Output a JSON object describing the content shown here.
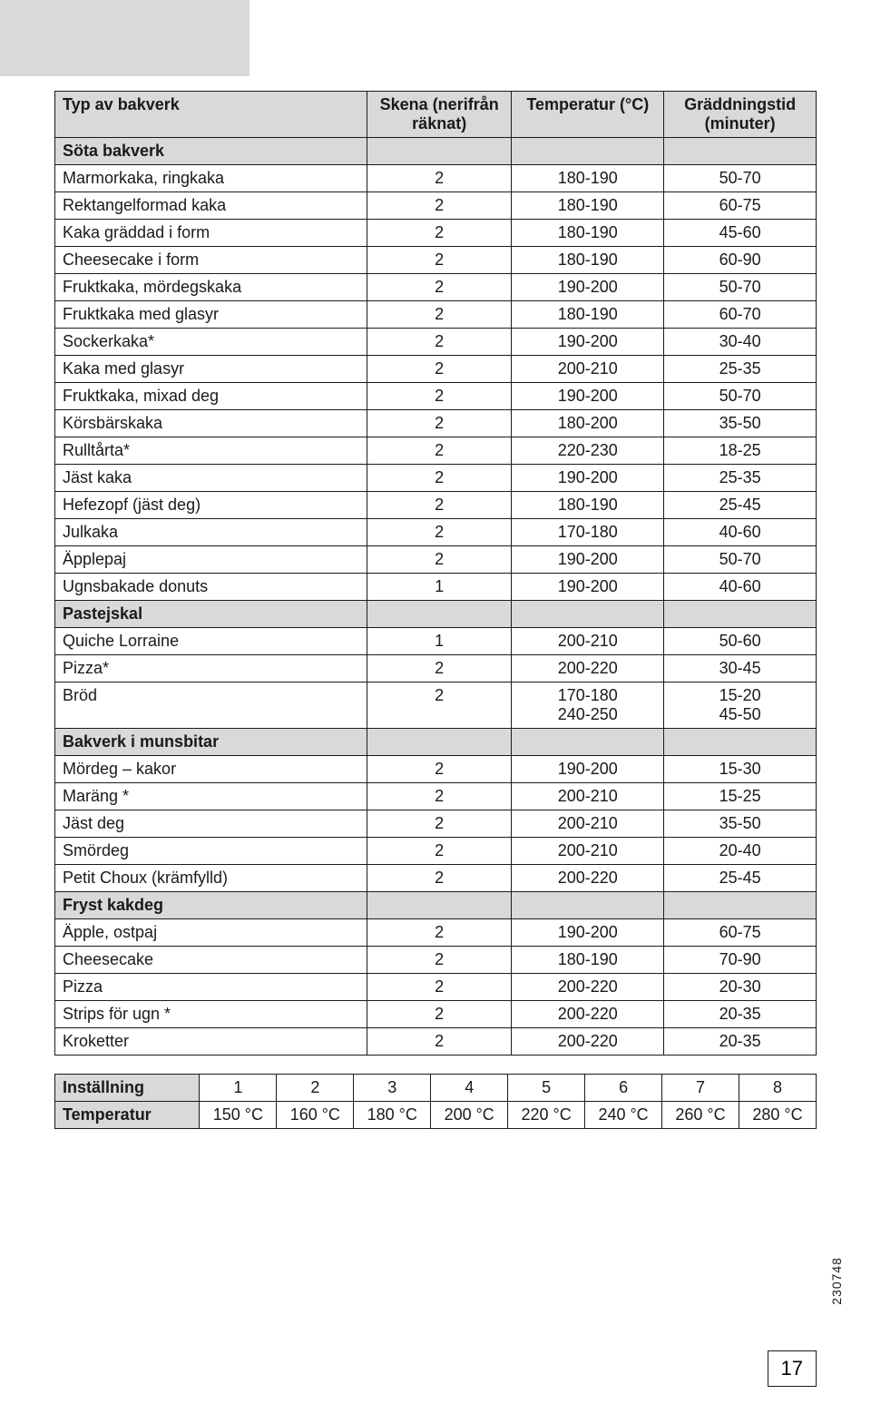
{
  "headers": {
    "col1": "Typ av bakverk",
    "col2_line1": "Skena (nerifrån",
    "col2_line2": "räknat)",
    "col3": "Temperatur (°C)",
    "col4_line1": "Gräddningstid",
    "col4_line2": "(minuter)"
  },
  "sections": [
    {
      "title": "Söta bakverk",
      "rows": [
        {
          "name": "Marmorkaka, ringkaka",
          "skena": "2",
          "temp": "180-190",
          "time": "50-70"
        },
        {
          "name": "Rektangelformad kaka",
          "skena": "2",
          "temp": "180-190",
          "time": "60-75"
        },
        {
          "name": "Kaka gräddad i form",
          "skena": "2",
          "temp": "180-190",
          "time": "45-60"
        },
        {
          "name": "Cheesecake i form",
          "skena": "2",
          "temp": "180-190",
          "time": "60-90"
        },
        {
          "name": "Fruktkaka, mördegskaka",
          "skena": "2",
          "temp": "190-200",
          "time": "50-70"
        },
        {
          "name": "Fruktkaka med glasyr",
          "skena": "2",
          "temp": "180-190",
          "time": "60-70"
        },
        {
          "name": "Sockerkaka*",
          "skena": "2",
          "temp": "190-200",
          "time": "30-40"
        },
        {
          "name": "Kaka med glasyr",
          "skena": "2",
          "temp": "200-210",
          "time": "25-35"
        },
        {
          "name": "Fruktkaka, mixad deg",
          "skena": "2",
          "temp": "190-200",
          "time": "50-70"
        },
        {
          "name": "Körsbärskaka",
          "skena": "2",
          "temp": "180-200",
          "time": "35-50"
        },
        {
          "name": "Rulltårta*",
          "skena": "2",
          "temp": "220-230",
          "time": "18-25"
        },
        {
          "name": "Jäst kaka",
          "skena": "2",
          "temp": "190-200",
          "time": "25-35"
        },
        {
          "name": "Hefezopf (jäst deg)",
          "skena": "2",
          "temp": "180-190",
          "time": "25-45"
        },
        {
          "name": "Julkaka",
          "skena": "2",
          "temp": "170-180",
          "time": "40-60"
        },
        {
          "name": "Äpplepaj",
          "skena": "2",
          "temp": "190-200",
          "time": "50-70"
        },
        {
          "name": "Ugnsbakade donuts",
          "skena": "1",
          "temp": "190-200",
          "time": "40-60"
        }
      ]
    },
    {
      "title": "Pastejskal",
      "rows": [
        {
          "name": "Quiche Lorraine",
          "skena": "1",
          "temp": "200-210",
          "time": "50-60"
        },
        {
          "name": "Pizza*",
          "skena": "2",
          "temp": "200-220",
          "time": "30-45"
        },
        {
          "name": "Bröd",
          "skena": "2",
          "temp": "170-180\n240-250",
          "time": "15-20\n45-50"
        }
      ]
    },
    {
      "title": "Bakverk i munsbitar",
      "rows": [
        {
          "name": "Mördeg – kakor",
          "skena": "2",
          "temp": "190-200",
          "time": "15-30"
        },
        {
          "name": "Maräng *",
          "skena": "2",
          "temp": "200-210",
          "time": "15-25"
        },
        {
          "name": "Jäst deg",
          "skena": "2",
          "temp": "200-210",
          "time": "35-50"
        },
        {
          "name": "Smördeg",
          "skena": "2",
          "temp": "200-210",
          "time": "20-40"
        },
        {
          "name": "Petit Choux  (krämfylld)",
          "skena": "2",
          "temp": "200-220",
          "time": "25-45"
        }
      ]
    },
    {
      "title": "Fryst kakdeg",
      "rows": [
        {
          "name": "Äpple, ostpaj",
          "skena": "2",
          "temp": "190-200",
          "time": "60-75"
        },
        {
          "name": "Cheesecake",
          "skena": "2",
          "temp": "180-190",
          "time": "70-90"
        },
        {
          "name": "Pizza",
          "skena": "2",
          "temp": "200-220",
          "time": "20-30"
        },
        {
          "name": "Strips för ugn *",
          "skena": "2",
          "temp": "200-220",
          "time": "20-35"
        },
        {
          "name": "Kroketter",
          "skena": "2",
          "temp": "200-220",
          "time": "20-35"
        }
      ]
    }
  ],
  "settings": {
    "row1_label": "Inställning",
    "row1_vals": [
      "1",
      "2",
      "3",
      "4",
      "5",
      "6",
      "7",
      "8"
    ],
    "row2_label": "Temperatur",
    "row2_vals": [
      "150 °C",
      "160 °C",
      "180 °C",
      "200 °C",
      "220 °C",
      "240 °C",
      "260 °C",
      "280 °C"
    ]
  },
  "page_number": "17",
  "side_code": "230748",
  "colors": {
    "header_bg": "#d9d9d9",
    "border": "#1a1a1a",
    "text": "#1a1a1a",
    "background": "#ffffff"
  }
}
